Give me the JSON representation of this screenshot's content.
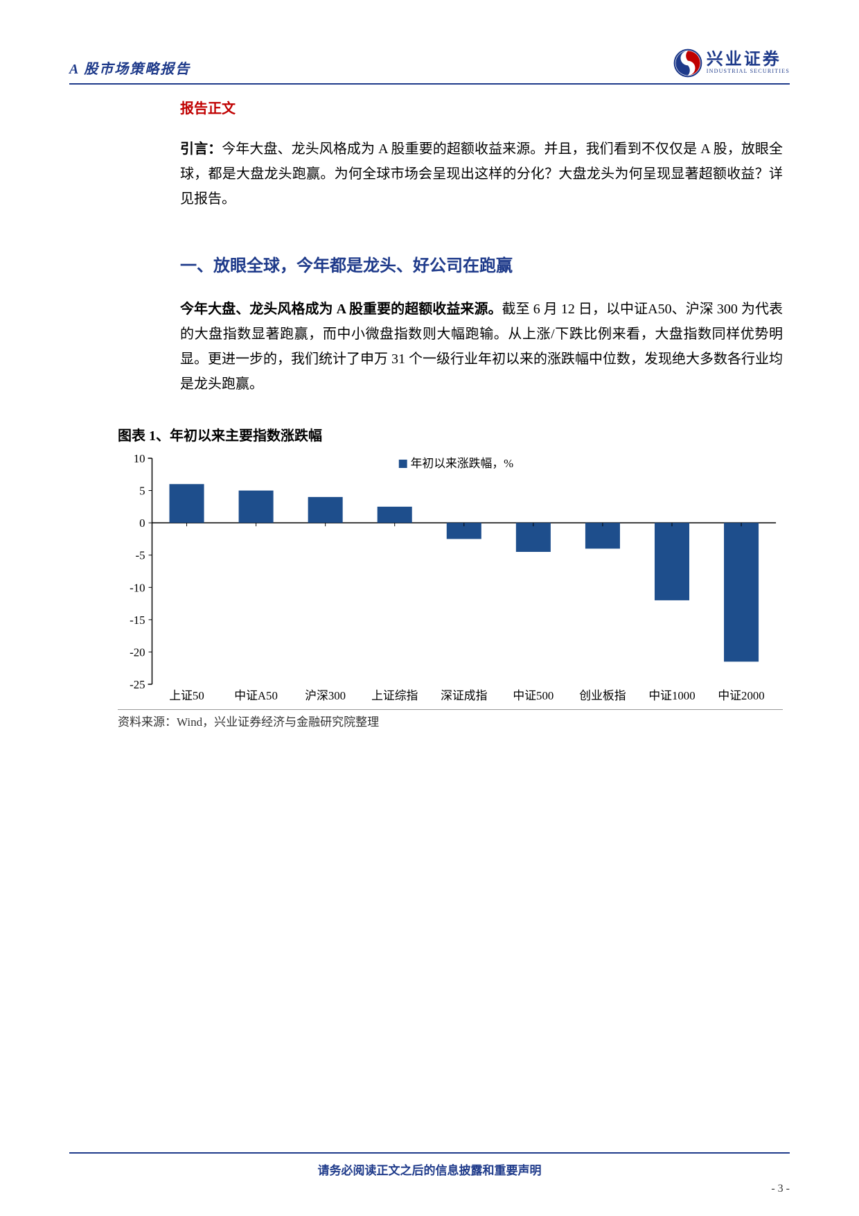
{
  "header": {
    "title": "A 股市场策略报告",
    "logo_cn": "兴业证券",
    "logo_en": "INDUSTRIAL SECURITIES"
  },
  "section_header": "报告正文",
  "intro": {
    "label": "引言：",
    "text": "今年大盘、龙头风格成为 A 股重要的超额收益来源。并且，我们看到不仅仅是 A 股，放眼全球，都是大盘龙头跑赢。为何全球市场会呈现出这样的分化？大盘龙头为何呈现显著超额收益？详见报告。"
  },
  "subsection_title": "一、放眼全球，今年都是龙头、好公司在跑赢",
  "body": {
    "bold": "今年大盘、龙头风格成为 A 股重要的超额收益来源。",
    "text": "截至 6 月 12 日，以中证A50、沪深 300 为代表的大盘指数显著跑赢，而中小微盘指数则大幅跑输。从上涨/下跌比例来看，大盘指数同样优势明显。更进一步的，我们统计了申万 31 个一级行业年初以来的涨跌幅中位数，发现绝大多数各行业均是龙头跑赢。"
  },
  "chart": {
    "title": "图表 1、年初以来主要指数涨跌幅",
    "type": "bar",
    "legend_label": "年初以来涨跌幅，%",
    "categories": [
      "上证50",
      "中证A50",
      "沪深300",
      "上证综指",
      "深证成指",
      "中证500",
      "创业板指",
      "中证1000",
      "中证2000"
    ],
    "values": [
      6,
      5,
      4,
      2.5,
      -2.5,
      -4.5,
      -4,
      -12,
      -21.5
    ],
    "bar_color": "#1e4e8c",
    "ylim": [
      -25,
      10
    ],
    "ytick_step": 5,
    "background_color": "#ffffff",
    "axis_color": "#000000",
    "tick_font_size": 17,
    "label_font_size": 17,
    "bar_width": 0.5
  },
  "chart_source": "资料来源：Wind，兴业证券经济与金融研究院整理",
  "footer": "请务必阅读正文之后的信息披露和重要声明",
  "page_num": "- 3 -"
}
